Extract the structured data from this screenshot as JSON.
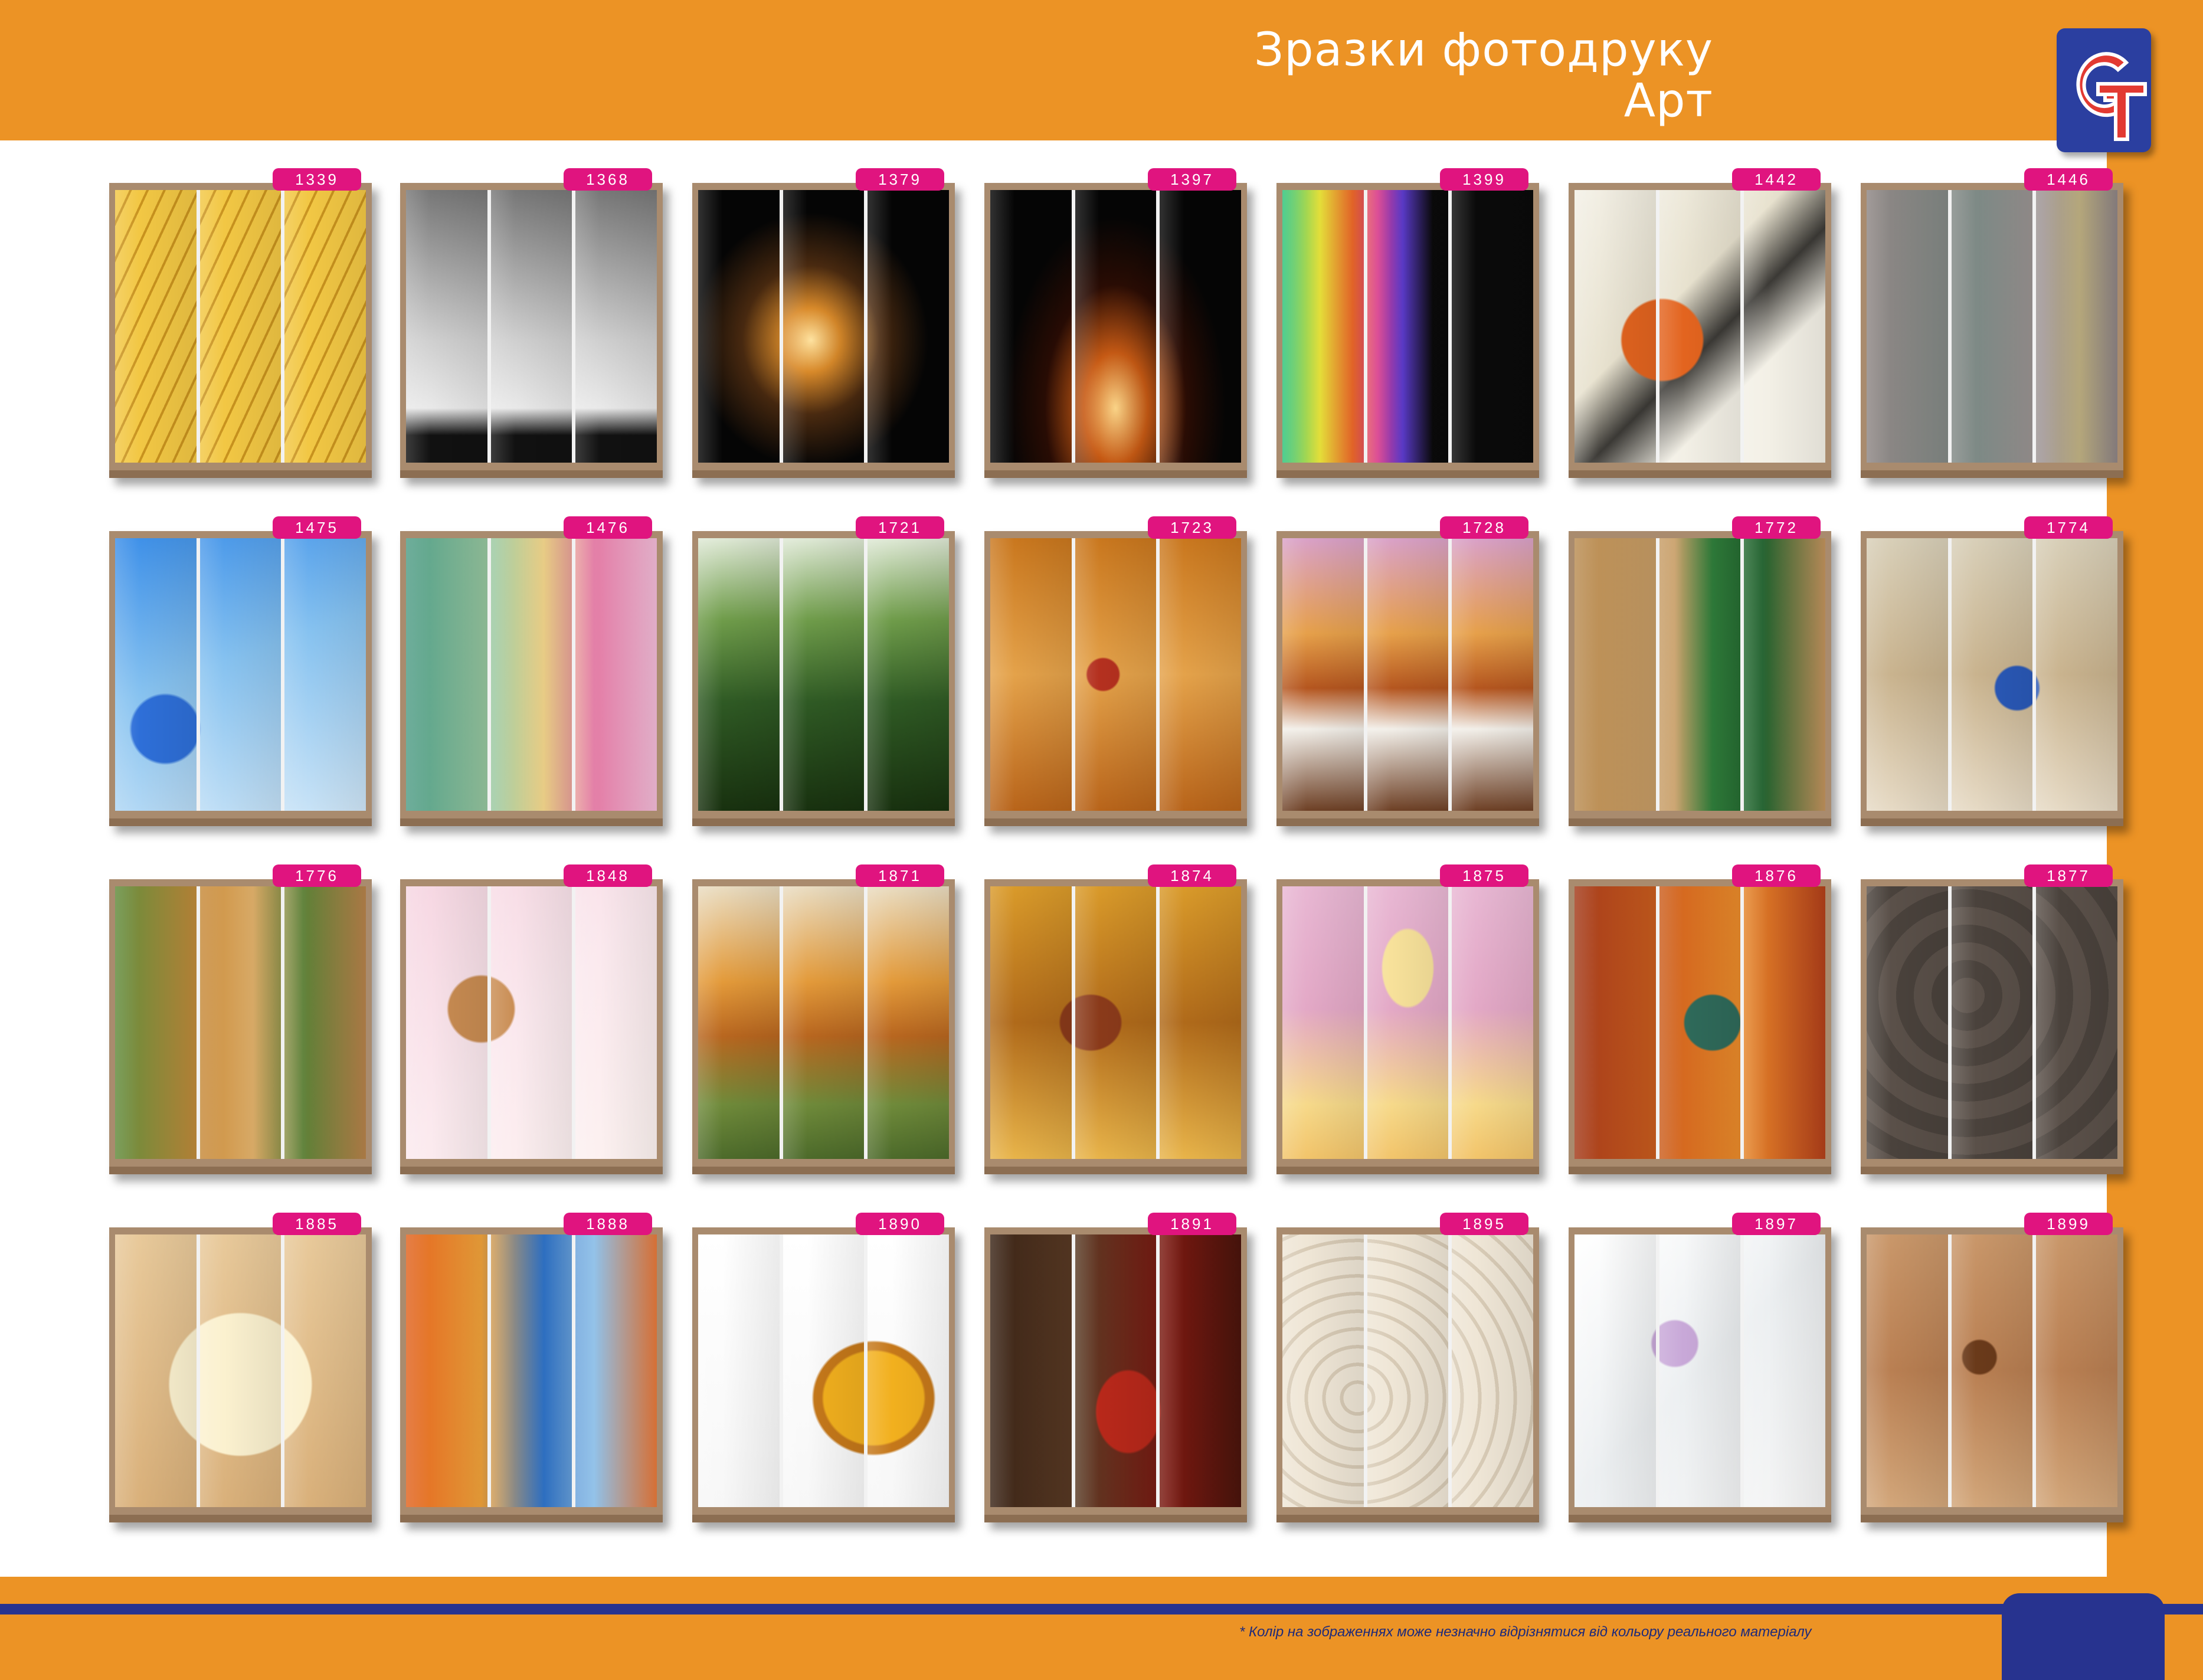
{
  "header": {
    "title_line1": "Зразки фотодруку",
    "title_line2": "Арт"
  },
  "logo": {
    "mark": "GT",
    "colors": [
      "#e23a32",
      "#2b3fa0"
    ]
  },
  "footnote": "* Колір на зображеннях може незначно відрізнятися від кольору реального матеріалу",
  "samples": [
    {
      "code": "1339",
      "bg": "repeating-linear-gradient(115deg,#f2c744 0 22px,#c9931e 22px 26px),#f2c744"
    },
    {
      "code": "1368",
      "bg": "linear-gradient(180deg,#777 0%,#cfcfcf 55%,#e9e9e9 80%,#111 90%)"
    },
    {
      "code": "1379",
      "bg": "radial-gradient(ellipse at 45% 55%,#ffe3a0 0%,#d98a2a 15%,#4a2a10 35%,#050505 60%)"
    },
    {
      "code": "1397",
      "bg": "radial-gradient(ellipse at 50% 80%,#ffd88a 0%,#c75a14 18%,#2a0c04 40%,#050505 62%)"
    },
    {
      "code": "1399",
      "bg": "linear-gradient(90deg,#29c27a 0%,#e8e23a 15%,#f06a2a 28%,#d83a8a 38%,#5a3ac8 48%,#0a0a0a 60%)"
    },
    {
      "code": "1442",
      "bg": "radial-gradient(circle at 35% 55%,#e3641f 0 18%,transparent 19%),linear-gradient(135deg,#f3f0e6 0%,#e8e2cf 40%,#3c3a36 55%,#f3f0e6 70%)"
    },
    {
      "code": "1446",
      "bg": "linear-gradient(90deg,#8d8583 0%,#7e8a86 45%,#9f9594 70%,#b9ab7e 85%,#8e8485 100%)"
    },
    {
      "code": "1475",
      "bg": "radial-gradient(circle at 20% 70%,#2e6fd8 0 12%,transparent 13%),linear-gradient(160deg,#3b8ee8 0%,#86c2f0 45%,#cfe6f7 100%)"
    },
    {
      "code": "1476",
      "bg": "linear-gradient(90deg,#4f9c86 0%,#9cc9a1 35%,#f1d48a 55%,#e27aa4 75%,#f3bcd8 100%)"
    },
    {
      "code": "1721",
      "bg": "linear-gradient(180deg,#dfe9d6 0%,#6f9c4a 30%,#2f5a24 60%,#18310f 100%)"
    },
    {
      "code": "1723",
      "bg": "radial-gradient(circle at 45% 50%,#b4301f 0 8%,transparent 9%),linear-gradient(180deg,#c9771e 0%,#e4a24a 50%,#b8641a 100%)"
    },
    {
      "code": "1728",
      "bg": "linear-gradient(180deg,#d9a1c8 0%,#e6a04a 35%,#b5561f 55%,#f2efe9 70%,#6e4025 100%)"
    },
    {
      "code": "1772",
      "bg": "linear-gradient(90deg,#b98c52 0%,#c9a06a 40%,#2f7d3a 55%,#1f5f2c 75%,#c2935d 100%)"
    },
    {
      "code": "1774",
      "bg": "radial-gradient(circle at 60% 55%,#2a59b8 0 10%,transparent 11%),linear-gradient(180deg,#d8cfb8 0%,#c9b38e 50%,#e6dac5 100%)"
    },
    {
      "code": "1776",
      "bg": "linear-gradient(90deg,#5f8a3a 0%,#c78a3a 35%,#e0b06a 55%,#5c7f36 75%,#b7824a 100%)"
    },
    {
      "code": "1848",
      "bg": "radial-gradient(circle at 30% 45%,#c98c52 0 14%,transparent 15%),linear-gradient(135deg,#f6d6e2 0%,#fbe9ee 50%,#fdf3f1 100%)"
    },
    {
      "code": "1871",
      "bg": "linear-gradient(180deg,#e9dcc1 0%,#e39a3a 35%,#b8661f 55%,#6f8a3a 80%,#4c6a2a 100%)"
    },
    {
      "code": "1874",
      "bg": "radial-gradient(ellipse at 40% 50%,#8a3a1a 0 14%,transparent 15%),linear-gradient(180deg,#d99a2a 0%,#b06a1a 50%,#e8b44a 100%)"
    },
    {
      "code": "1875",
      "bg": "radial-gradient(ellipse at 50% 30%,#f7e19a 0 14%,transparent 15%),linear-gradient(180deg,#e8b7d3 0%,#e3a8c6 45%,#f6d98a 80%,#f2c46a 100%)"
    },
    {
      "code": "1876",
      "bg": "radial-gradient(ellipse at 55% 50%,#2f6a5a 0 14%,transparent 15%),linear-gradient(90deg,#a33a1a 0%,#d2641e 40%,#e98a2a 65%,#b2401a 100%)"
    },
    {
      "code": "1877",
      "bg": "repeating-radial-gradient(circle at 40% 40%,#5a5049 0 30px,#4a423c 30px 60px),#514842"
    },
    {
      "code": "1885",
      "bg": "radial-gradient(circle at 50% 55%,#fbf1cf 0 36%,transparent 37%),linear-gradient(180deg,#e8c99a 0%,#d9b07a 100%)"
    },
    {
      "code": "1888",
      "bg": "linear-gradient(90deg,#e0621e 0%,#f0a23a 30%,#2f73c8 55%,#8fc0e8 75%,#e7793a 100%)"
    },
    {
      "code": "1890",
      "bg": "radial-gradient(ellipse at 70% 60%,#f2b01e 0 20%,#c5781a 21% 24%,transparent 25%),linear-gradient(180deg,#ffffff 0%,#f7f7f7 100%)"
    },
    {
      "code": "1891",
      "bg": "radial-gradient(ellipse at 55% 65%,#b8281a 0 16%,transparent 17%),linear-gradient(90deg,#3a2416 0%,#5a3a24 35%,#7a1810 70%,#4a140c 100%)"
    },
    {
      "code": "1895",
      "bg": "repeating-radial-gradient(circle at 30% 60%,#efe6d6 0 24px,#d8cbb6 24px 30px),#efe6d6"
    },
    {
      "code": "1897",
      "bg": "radial-gradient(circle at 40% 40%,#c8a8d8 0 10%,transparent 11%),linear-gradient(135deg,#ffffff 0%,#eceff1 50%,#f6f6f6 100%)"
    },
    {
      "code": "1899",
      "bg": "radial-gradient(circle at 45% 45%,#6a3a1a 0 8%,transparent 9%),linear-gradient(180deg,#c9976a 0%,#b97f52 50%,#d2a67a 100%)"
    }
  ]
}
